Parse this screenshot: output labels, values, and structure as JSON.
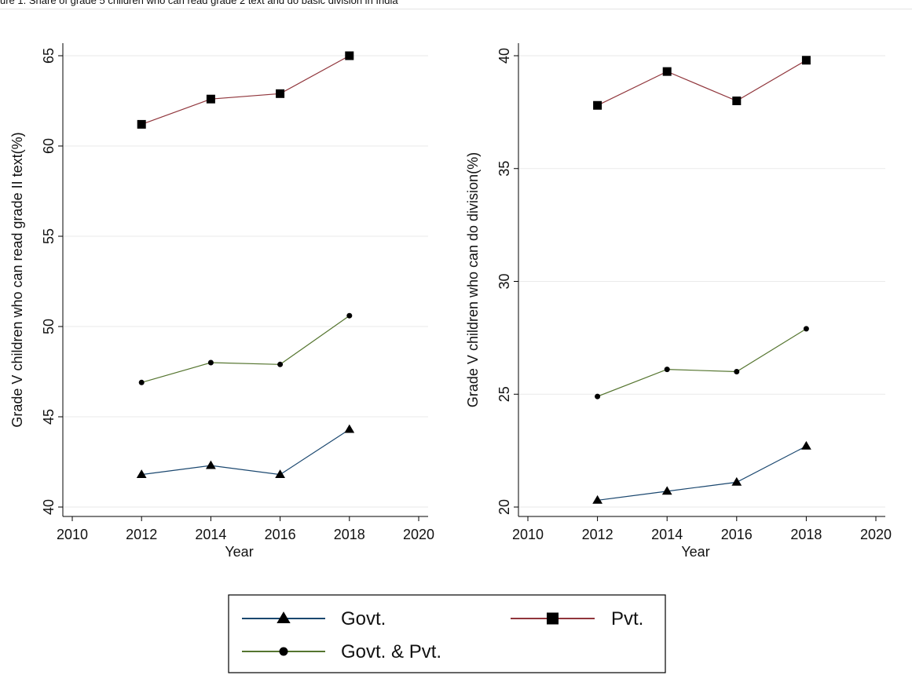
{
  "caption": "ure 1. Share of grade 5 children who can read grade 2 text and do basic division in India",
  "colors": {
    "govt": "#1a476f",
    "pvt": "#90353b",
    "both": "#55752f",
    "grid": "#eaeaea",
    "axis": "#000000"
  },
  "legend": {
    "placement": "bottom",
    "items": [
      {
        "series": "govt",
        "label": "Govt.",
        "marker": "triangle"
      },
      {
        "series": "pvt",
        "label": "Pvt.",
        "marker": "square"
      },
      {
        "series": "both",
        "label": "Govt. & Pvt.",
        "marker": "circle"
      }
    ]
  },
  "chart_data": [
    {
      "type": "line",
      "xlabel": "Year",
      "ylabel": "Grade V children who can read grade II text(%)",
      "xlim": [
        2010,
        2020
      ],
      "ylim": [
        40,
        65
      ],
      "xticks": [
        2010,
        2012,
        2014,
        2016,
        2018,
        2020
      ],
      "yticks": [
        40,
        45,
        50,
        55,
        60,
        65
      ],
      "grid": true,
      "x": [
        2012,
        2014,
        2016,
        2018
      ],
      "series": [
        {
          "key": "govt",
          "name": "Govt.",
          "marker": "triangle",
          "values": [
            41.8,
            42.3,
            41.8,
            44.3
          ]
        },
        {
          "key": "pvt",
          "name": "Pvt.",
          "marker": "square",
          "values": [
            61.2,
            62.6,
            62.9,
            65.0
          ]
        },
        {
          "key": "both",
          "name": "Govt. & Pvt.",
          "marker": "circle",
          "values": [
            46.9,
            48.0,
            47.9,
            50.6
          ]
        }
      ]
    },
    {
      "type": "line",
      "xlabel": "Year",
      "ylabel": "Grade V children who can do division(%)",
      "xlim": [
        2010,
        2020
      ],
      "ylim": [
        20,
        40
      ],
      "xticks": [
        2010,
        2012,
        2014,
        2016,
        2018,
        2020
      ],
      "yticks": [
        20,
        25,
        30,
        35,
        40
      ],
      "grid": true,
      "x": [
        2012,
        2014,
        2016,
        2018
      ],
      "series": [
        {
          "key": "govt",
          "name": "Govt.",
          "marker": "triangle",
          "values": [
            20.3,
            20.7,
            21.1,
            22.7
          ]
        },
        {
          "key": "pvt",
          "name": "Pvt.",
          "marker": "square",
          "values": [
            37.8,
            39.3,
            38.0,
            39.8
          ]
        },
        {
          "key": "both",
          "name": "Govt. & Pvt.",
          "marker": "circle",
          "values": [
            24.9,
            26.1,
            26.0,
            27.9
          ]
        }
      ]
    }
  ]
}
